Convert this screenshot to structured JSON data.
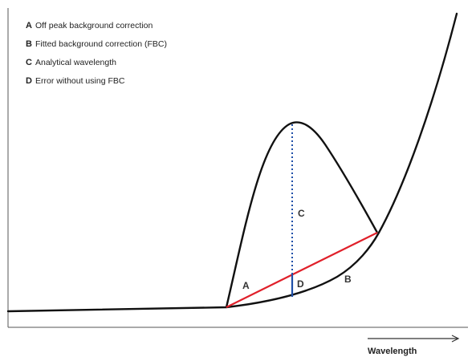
{
  "legend": {
    "items": [
      {
        "key": "A",
        "text": "Off peak background correction"
      },
      {
        "key": "B",
        "text": "Fitted background correction (FBC)"
      },
      {
        "key": "C",
        "text": "Analytical wavelength"
      },
      {
        "key": "D",
        "text": "Error without using FBC"
      }
    ]
  },
  "labels": {
    "a": "A",
    "b": "B",
    "c": "C",
    "d": "D"
  },
  "axis": {
    "x_label": "Wavelength"
  },
  "colors": {
    "curve": "#111111",
    "linear_background": "#e0202a",
    "analytical_line": "#1f4fa8",
    "error_segment": "#1f4fa8",
    "axis": "#555555"
  }
}
